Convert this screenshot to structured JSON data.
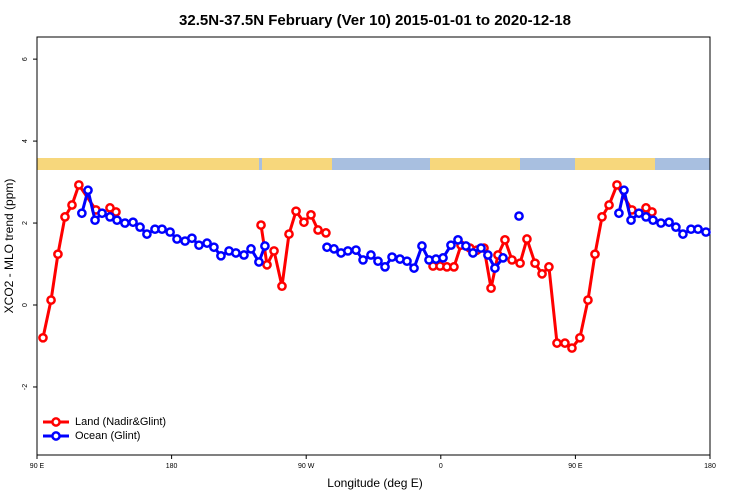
{
  "chart_data": {
    "type": "line",
    "title": "32.5N-37.5N February (Ver 10)   2015-01-01 to 2020-12-18",
    "x_label": "Longitude (deg E)",
    "y_label": "XCO2 - MLO trend (ppm)",
    "xlim": [
      90,
      540
    ],
    "xticks": [
      {
        "value": 90,
        "label": "90 E"
      },
      180,
      {
        "value": 270,
        "label": "90 W"
      },
      {
        "value": 360,
        "label": "0"
      },
      {
        "value": 450,
        "label": "90 E"
      },
      {
        "value": 540,
        "label": "180"
      }
    ],
    "ylim": [
      -3.66,
      6.54
    ],
    "yticks": [
      -2,
      0,
      2,
      4,
      6
    ],
    "legend": "bottom-left",
    "series": [
      {
        "name": "Land (Nadir&Glint)",
        "color": "#ff0000",
        "x": [
          94,
          99.4,
          104,
          108.7,
          113.4,
          118,
          129.4,
          null,
          138.8,
          142.8,
          null,
          239.8,
          243.8,
          248.5,
          253.8,
          258.5,
          263.2,
          268.5,
          273.2,
          277.9,
          283.2,
          null,
          354.8,
          359.5,
          364.1,
          368.8,
          373.5,
          379.5,
          384.2,
          388.9,
          393.6,
          398.2,
          402.9,
          407.6,
          413,
          417.6,
          423,
          427.7,
          432.3,
          437.7,
          443,
          447.7,
          453,
          458.4,
          463.1,
          467.8,
          472.5,
          477.8,
          487.8,
          null,
          497.2,
          501.2
        ],
        "values": [
          -0.8,
          0.12,
          1.24,
          2.15,
          2.44,
          2.93,
          2.32,
          null,
          2.37,
          2.27,
          null,
          1.95,
          0.98,
          1.32,
          0.46,
          1.73,
          2.29,
          2.02,
          2.2,
          1.83,
          1.76,
          null,
          0.95,
          0.95,
          0.93,
          0.93,
          1.46,
          1.39,
          1.34,
          1.39,
          0.41,
          1.22,
          1.59,
          1.1,
          1.02,
          1.61,
          1.02,
          0.76,
          0.93,
          -0.93,
          -0.93,
          -1.05,
          -0.8,
          0.12,
          1.24,
          2.15,
          2.44,
          2.93,
          2.32,
          null,
          2.37,
          2.27
        ]
      },
      {
        "name": "Ocean (Glint)",
        "color": "#0000ff",
        "x": [
          120,
          124.1,
          128.8,
          133.5,
          138.8,
          143.5,
          148.8,
          154.2,
          158.9,
          163.5,
          168.9,
          173.6,
          179,
          183.6,
          189,
          193.6,
          198.3,
          203.7,
          208.3,
          213,
          218.4,
          223,
          228.4,
          233.1,
          238.4,
          242.4,
          null,
          283.9,
          288.6,
          293.3,
          297.9,
          303.3,
          308,
          313.3,
          318,
          322.7,
          327.4,
          332.7,
          337.4,
          342.1,
          347.4,
          352.1,
          356.8,
          361.5,
          366.8,
          371.5,
          376.8,
          381.5,
          386.9,
          391.5,
          396.2,
          401.6,
          null,
          412.3,
          null,
          479.1,
          482.5,
          487.2,
          492.5,
          497.2,
          501.9,
          507.2,
          512.6,
          517.2,
          521.9,
          527.3,
          532,
          537.3
        ],
        "values": [
          2.24,
          2.8,
          2.07,
          2.24,
          2.15,
          2.07,
          2.0,
          2.02,
          1.9,
          1.73,
          1.85,
          1.85,
          1.78,
          1.61,
          1.56,
          1.63,
          1.46,
          1.51,
          1.41,
          1.2,
          1.32,
          1.27,
          1.22,
          1.37,
          1.05,
          1.44,
          null,
          1.41,
          1.37,
          1.27,
          1.32,
          1.34,
          1.1,
          1.22,
          1.07,
          0.93,
          1.17,
          1.12,
          1.07,
          0.9,
          1.44,
          1.1,
          1.12,
          1.15,
          1.46,
          1.59,
          1.44,
          1.27,
          1.39,
          1.22,
          0.9,
          1.15,
          null,
          2.17,
          null,
          2.24,
          2.8,
          2.07,
          2.24,
          2.15,
          2.07,
          2.0,
          2.02,
          1.9,
          1.73,
          1.85,
          1.85,
          1.78
        ]
      }
    ]
  }
}
